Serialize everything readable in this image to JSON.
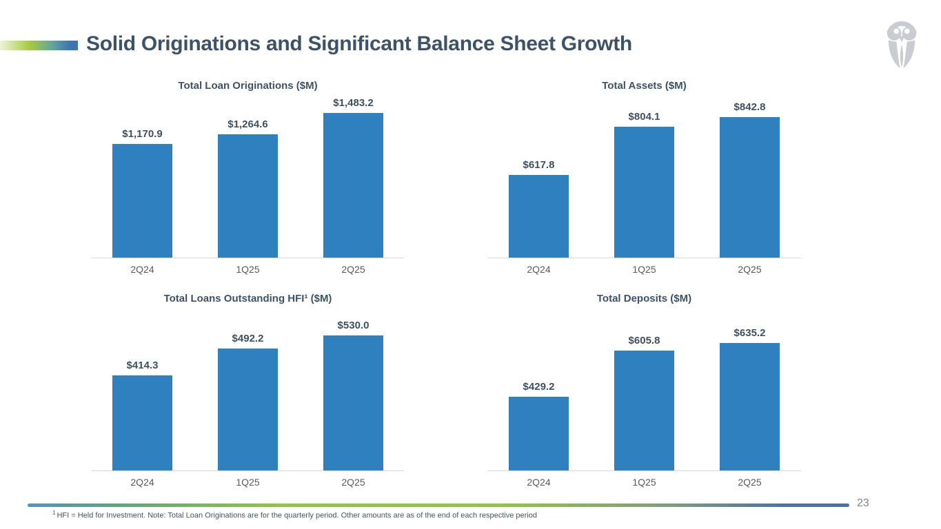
{
  "slide": {
    "title": "Solid Originations and Significant Balance Sheet Growth",
    "page_number": "23",
    "footnote_sup": "1",
    "footnote": "HFI = Held for Investment. Note: Total Loan Originations are for the quarterly period. Other amounts are as of the end of each respective period"
  },
  "colors": {
    "bar_blue": "#2E80BF",
    "title_slate": "#3C5269",
    "value_label_slate": "#3F5060",
    "tick_gray": "#595959",
    "axis_line_gray": "#D9D9D9",
    "page_number_gray": "#7A8794",
    "logo_gray": "#C9CDD1",
    "accent_green": "#A6CB3F",
    "accent_blue": "#3E74B4"
  },
  "chart_data": [
    {
      "type": "bar",
      "title": "Total Loan Originations ($M)",
      "categories": [
        "2Q24",
        "1Q25",
        "2Q25"
      ],
      "values": [
        1170.9,
        1264.6,
        1483.2
      ],
      "value_labels": [
        "$1,170.9",
        "$1,264.6",
        "$1,483.2"
      ],
      "ylim": [
        0,
        1600
      ],
      "bar_color": "#2E80BF",
      "grid": false,
      "legend": false
    },
    {
      "type": "bar",
      "title": "Total Assets ($M)",
      "categories": [
        "2Q24",
        "1Q25",
        "2Q25"
      ],
      "values": [
        617.8,
        804.1,
        842.8
      ],
      "value_labels": [
        "$617.8",
        "$804.1",
        "$842.8"
      ],
      "ylim": [
        300,
        900
      ],
      "bar_color": "#2E80BF",
      "grid": false,
      "legend": false
    },
    {
      "type": "bar",
      "title": "Total Loans Outstanding HFI¹ ($M)",
      "categories": [
        "2Q24",
        "1Q25",
        "2Q25"
      ],
      "values": [
        414.3,
        492.2,
        530.0
      ],
      "value_labels": [
        "$414.3",
        "$492.2",
        "$530.0"
      ],
      "ylim": [
        140,
        590
      ],
      "bar_color": "#2E80BF",
      "grid": false,
      "legend": false
    },
    {
      "type": "bar",
      "title": "Total Deposits ($M)",
      "categories": [
        "2Q24",
        "1Q25",
        "2Q25"
      ],
      "values": [
        429.2,
        605.8,
        635.2
      ],
      "value_labels": [
        "$429.2",
        "$605.8",
        "$635.2"
      ],
      "ylim": [
        145,
        745
      ],
      "bar_color": "#2E80BF",
      "grid": false,
      "legend": false
    }
  ]
}
